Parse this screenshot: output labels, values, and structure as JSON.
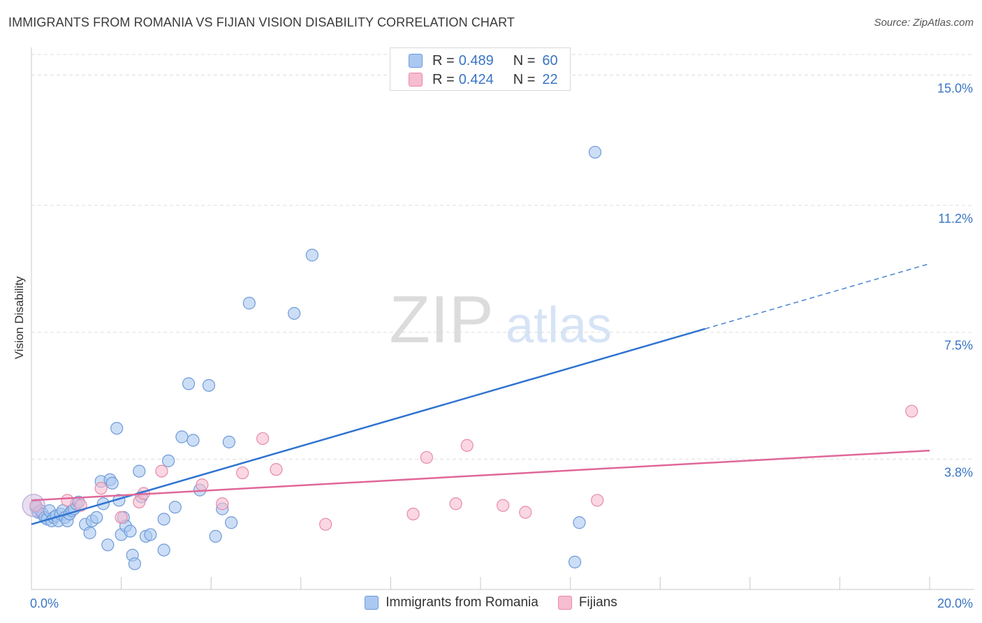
{
  "header": {
    "title": "IMMIGRANTS FROM ROMANIA VS FIJIAN VISION DISABILITY CORRELATION CHART",
    "source": "Source: ZipAtlas.com"
  },
  "watermark": {
    "zip": "ZIP",
    "atlas": "atlas"
  },
  "legend": {
    "rows": [
      {
        "r_label": "R =",
        "r_value": "0.489",
        "n_label": "N =",
        "n_value": "60"
      },
      {
        "r_label": "R =",
        "r_value": "0.424",
        "n_label": "N =",
        "n_value": "22"
      }
    ]
  },
  "colors": {
    "blue_fill": "#aac8f0",
    "blue_stroke": "#6f9bd8",
    "blue_line": "#2f74d0",
    "pink_fill": "#f6bcd0",
    "pink_stroke": "#e88aa8",
    "pink_line": "#e0679a",
    "accent_text": "#3a75c4",
    "grid": "#dddddd"
  },
  "chart_data": {
    "type": "scatter",
    "title": "IMMIGRANTS FROM ROMANIA VS FIJIAN VISION DISABILITY CORRELATION CHART",
    "xlabel": "",
    "ylabel": "Vision Disability",
    "xlim": [
      0,
      20
    ],
    "ylim": [
      0,
      15.6
    ],
    "x_tick_labels": [
      "0.0%",
      "20.0%"
    ],
    "y_ticks": [
      3.8,
      7.5,
      11.2,
      15.0
    ],
    "y_tick_labels": [
      "3.8%",
      "7.5%",
      "11.2%",
      "15.0%"
    ],
    "legend_position": "top-center",
    "series": [
      {
        "name": "Immigrants from Romania",
        "r": 0.489,
        "n": 60,
        "trend": {
          "x0": 0.0,
          "y0": 1.9,
          "x1": 15.0,
          "y1": 7.6,
          "dash_x1": 20.0,
          "dash_y1": 9.5
        },
        "points": [
          [
            0.1,
            2.4
          ],
          [
            0.15,
            2.25
          ],
          [
            0.2,
            2.3
          ],
          [
            0.25,
            2.2
          ],
          [
            0.3,
            2.1
          ],
          [
            0.35,
            2.05
          ],
          [
            0.4,
            2.3
          ],
          [
            0.45,
            2.0
          ],
          [
            0.5,
            2.1
          ],
          [
            0.55,
            2.15
          ],
          [
            0.6,
            2.0
          ],
          [
            0.65,
            2.2
          ],
          [
            0.7,
            2.3
          ],
          [
            0.75,
            2.1
          ],
          [
            0.8,
            2.0
          ],
          [
            0.85,
            2.2
          ],
          [
            0.9,
            2.3
          ],
          [
            0.95,
            2.35
          ],
          [
            1.0,
            2.5
          ],
          [
            1.05,
            2.55
          ],
          [
            1.2,
            1.9
          ],
          [
            1.3,
            1.65
          ],
          [
            1.35,
            2.0
          ],
          [
            1.45,
            2.1
          ],
          [
            1.55,
            3.15
          ],
          [
            1.6,
            2.5
          ],
          [
            1.7,
            1.3
          ],
          [
            1.75,
            3.2
          ],
          [
            1.8,
            3.1
          ],
          [
            1.9,
            4.7
          ],
          [
            1.95,
            2.6
          ],
          [
            2.0,
            1.6
          ],
          [
            2.05,
            2.1
          ],
          [
            2.1,
            1.85
          ],
          [
            2.2,
            1.7
          ],
          [
            2.25,
            1.0
          ],
          [
            2.3,
            0.75
          ],
          [
            2.4,
            3.45
          ],
          [
            2.45,
            2.7
          ],
          [
            2.55,
            1.55
          ],
          [
            2.65,
            1.6
          ],
          [
            2.95,
            1.15
          ],
          [
            2.95,
            2.05
          ],
          [
            3.05,
            3.75
          ],
          [
            3.2,
            2.4
          ],
          [
            3.35,
            4.45
          ],
          [
            3.5,
            6.0
          ],
          [
            3.6,
            4.35
          ],
          [
            3.75,
            2.9
          ],
          [
            3.95,
            5.95
          ],
          [
            4.1,
            1.55
          ],
          [
            4.25,
            2.35
          ],
          [
            4.45,
            1.95
          ],
          [
            4.4,
            4.3
          ],
          [
            4.85,
            8.35
          ],
          [
            5.85,
            8.05
          ],
          [
            6.25,
            9.75
          ],
          [
            12.1,
            0.8
          ],
          [
            12.2,
            1.95
          ],
          [
            12.55,
            12.75
          ]
        ]
      },
      {
        "name": "Fijians",
        "r": 0.424,
        "n": 22,
        "trend": {
          "x0": 0.0,
          "y0": 2.6,
          "x1": 20.0,
          "y1": 4.05
        },
        "points": [
          [
            0.1,
            2.45
          ],
          [
            0.8,
            2.6
          ],
          [
            1.1,
            2.45
          ],
          [
            1.55,
            2.95
          ],
          [
            2.0,
            2.1
          ],
          [
            2.4,
            2.55
          ],
          [
            2.5,
            2.8
          ],
          [
            2.9,
            3.45
          ],
          [
            3.8,
            3.05
          ],
          [
            4.25,
            2.5
          ],
          [
            4.7,
            3.4
          ],
          [
            5.15,
            4.4
          ],
          [
            5.45,
            3.5
          ],
          [
            6.55,
            1.9
          ],
          [
            8.5,
            2.2
          ],
          [
            8.8,
            3.85
          ],
          [
            9.45,
            2.5
          ],
          [
            9.7,
            4.2
          ],
          [
            10.5,
            2.45
          ],
          [
            11.0,
            2.25
          ],
          [
            12.6,
            2.6
          ],
          [
            19.6,
            5.2
          ]
        ]
      }
    ]
  }
}
